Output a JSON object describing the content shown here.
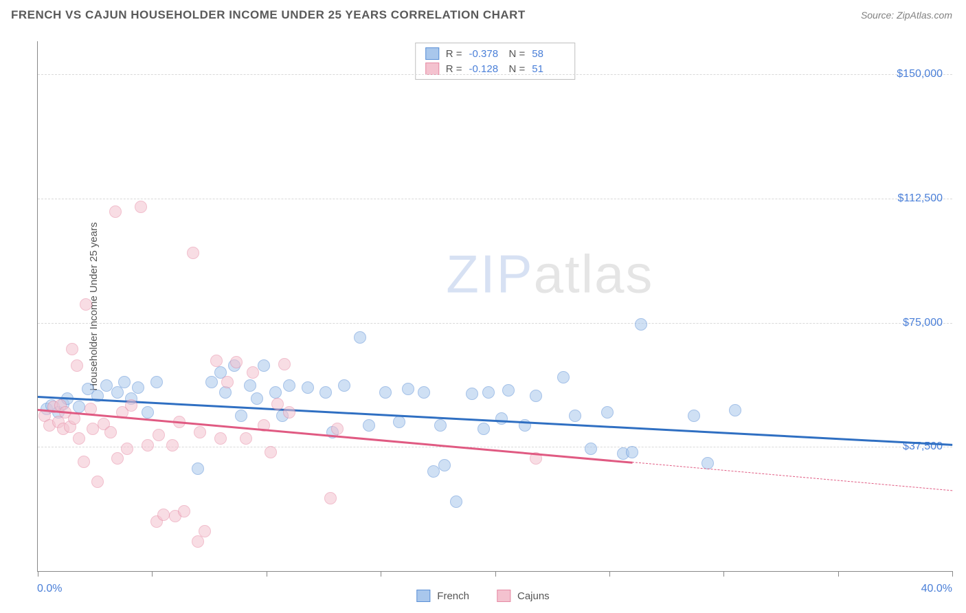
{
  "header": {
    "title": "FRENCH VS CAJUN HOUSEHOLDER INCOME UNDER 25 YEARS CORRELATION CHART",
    "source": "Source: ZipAtlas.com"
  },
  "chart": {
    "type": "scatter",
    "ylabel": "Householder Income Under 25 years",
    "xlim": [
      0,
      40
    ],
    "ylim": [
      0,
      160000
    ],
    "xaxis": {
      "min_label": "0.0%",
      "max_label": "40.0%",
      "tick_positions": [
        0,
        5,
        10,
        15,
        20,
        25,
        30,
        35,
        40
      ]
    },
    "yaxis": {
      "gridlines": [
        {
          "value": 37500,
          "label": "$37,500"
        },
        {
          "value": 75000,
          "label": "$75,000"
        },
        {
          "value": 112500,
          "label": "$112,500"
        },
        {
          "value": 150000,
          "label": "$150,000"
        }
      ]
    },
    "background_color": "#ffffff",
    "grid_color": "#d9d9d9",
    "axis_color": "#888888",
    "tick_label_color": "#4a7fd8",
    "point_radius": 9,
    "point_opacity": 0.55,
    "series": [
      {
        "name": "French",
        "color_fill": "#a9c7ec",
        "color_stroke": "#5a8fd6",
        "line_color": "#2f6fc2",
        "R": "-0.378",
        "N": "58",
        "trend": {
          "x1": 0,
          "y1": 53000,
          "x2": 40,
          "y2": 38500,
          "solid_until_x": 40
        },
        "points": [
          [
            0.4,
            49000
          ],
          [
            0.6,
            50000
          ],
          [
            0.9,
            48000
          ],
          [
            1.1,
            50500
          ],
          [
            1.3,
            52000
          ],
          [
            1.8,
            49500
          ],
          [
            2.2,
            55000
          ],
          [
            2.6,
            53000
          ],
          [
            3.0,
            56000
          ],
          [
            3.5,
            54000
          ],
          [
            3.8,
            57000
          ],
          [
            4.1,
            52000
          ],
          [
            4.4,
            55500
          ],
          [
            4.8,
            48000
          ],
          [
            5.2,
            57000
          ],
          [
            7.0,
            31000
          ],
          [
            7.6,
            57000
          ],
          [
            8.0,
            60000
          ],
          [
            8.2,
            54000
          ],
          [
            8.6,
            62000
          ],
          [
            8.9,
            47000
          ],
          [
            9.3,
            56000
          ],
          [
            9.6,
            52000
          ],
          [
            9.9,
            62000
          ],
          [
            10.4,
            54000
          ],
          [
            10.7,
            47000
          ],
          [
            11.0,
            56000
          ],
          [
            11.8,
            55500
          ],
          [
            12.6,
            54000
          ],
          [
            12.9,
            42000
          ],
          [
            13.4,
            56000
          ],
          [
            14.1,
            70500
          ],
          [
            14.5,
            44000
          ],
          [
            15.2,
            54000
          ],
          [
            15.8,
            45000
          ],
          [
            16.2,
            55000
          ],
          [
            16.9,
            54000
          ],
          [
            17.3,
            30000
          ],
          [
            17.6,
            44000
          ],
          [
            17.8,
            32000
          ],
          [
            18.3,
            21000
          ],
          [
            19.0,
            53500
          ],
          [
            19.5,
            43000
          ],
          [
            19.7,
            54000
          ],
          [
            20.3,
            46000
          ],
          [
            20.6,
            54500
          ],
          [
            21.3,
            44000
          ],
          [
            21.8,
            53000
          ],
          [
            23.0,
            58500
          ],
          [
            23.5,
            47000
          ],
          [
            24.2,
            37000
          ],
          [
            24.9,
            48000
          ],
          [
            25.6,
            35500
          ],
          [
            26.0,
            36000
          ],
          [
            26.4,
            74500
          ],
          [
            28.7,
            47000
          ],
          [
            29.3,
            32500
          ],
          [
            30.5,
            48500
          ]
        ]
      },
      {
        "name": "Cajuns",
        "color_fill": "#f4c2cf",
        "color_stroke": "#e68aa4",
        "line_color": "#e05a82",
        "R": "-0.128",
        "N": "51",
        "trend": {
          "x1": 0,
          "y1": 49000,
          "x2": 40,
          "y2": 24500,
          "solid_until_x": 26
        },
        "points": [
          [
            0.3,
            47000
          ],
          [
            0.5,
            44000
          ],
          [
            0.7,
            49500
          ],
          [
            0.9,
            45000
          ],
          [
            1.0,
            50000
          ],
          [
            1.1,
            43000
          ],
          [
            1.2,
            48000
          ],
          [
            1.4,
            43500
          ],
          [
            1.5,
            67000
          ],
          [
            1.6,
            46000
          ],
          [
            1.7,
            62000
          ],
          [
            1.8,
            40000
          ],
          [
            2.0,
            33000
          ],
          [
            2.1,
            80500
          ],
          [
            2.3,
            49000
          ],
          [
            2.4,
            43000
          ],
          [
            2.6,
            27000
          ],
          [
            2.9,
            44500
          ],
          [
            3.2,
            42000
          ],
          [
            3.4,
            108500
          ],
          [
            3.5,
            34000
          ],
          [
            3.7,
            48000
          ],
          [
            3.9,
            37000
          ],
          [
            4.1,
            50000
          ],
          [
            4.5,
            110000
          ],
          [
            4.8,
            38000
          ],
          [
            5.2,
            15000
          ],
          [
            5.3,
            41000
          ],
          [
            5.5,
            17000
          ],
          [
            5.9,
            38000
          ],
          [
            6.0,
            16500
          ],
          [
            6.2,
            45000
          ],
          [
            6.4,
            18000
          ],
          [
            6.8,
            96000
          ],
          [
            7.0,
            9000
          ],
          [
            7.1,
            42000
          ],
          [
            7.3,
            12000
          ],
          [
            7.8,
            63500
          ],
          [
            8.0,
            40000
          ],
          [
            8.3,
            57000
          ],
          [
            8.7,
            63000
          ],
          [
            9.1,
            40000
          ],
          [
            9.4,
            60000
          ],
          [
            9.9,
            44000
          ],
          [
            10.2,
            36000
          ],
          [
            10.5,
            50500
          ],
          [
            10.8,
            62500
          ],
          [
            11.0,
            48000
          ],
          [
            12.8,
            22000
          ],
          [
            13.1,
            43000
          ],
          [
            21.8,
            34000
          ]
        ]
      }
    ],
    "legend_top": {
      "labels": {
        "r": "R =",
        "n": "N ="
      }
    },
    "legend_bottom": [
      {
        "label": "French",
        "series": 0
      },
      {
        "label": "Cajuns",
        "series": 1
      }
    ],
    "watermark": {
      "part1": "ZIP",
      "part2": "atlas"
    }
  }
}
